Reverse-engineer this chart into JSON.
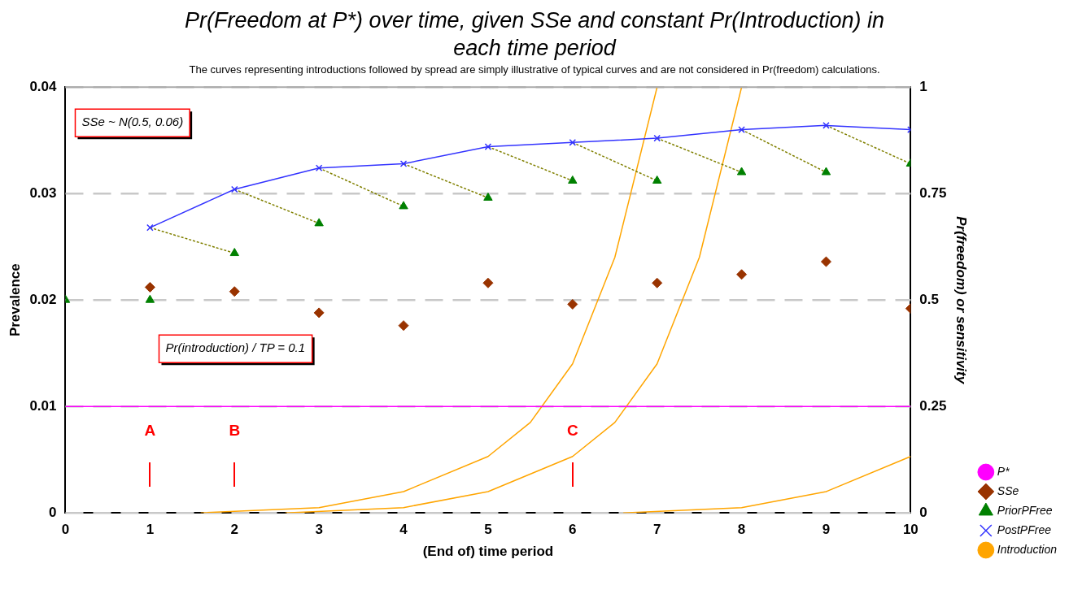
{
  "chart_data": {
    "type": "scatter",
    "title": "Pr(Freedom at P*)  over time, given SSe and constant Pr(Introduction) in each time period",
    "subtitle": "The curves representing introductions followed by spread are simply illustrative of typical curves and are not considered in Pr(freedom) calculations.",
    "xlabel": "(End of) time period",
    "ylabel": "Prevalence",
    "y2label": "Pr(freedom) or sensitivity",
    "xlim": [
      0,
      10
    ],
    "xticks": [
      0,
      1,
      2,
      3,
      4,
      5,
      6,
      7,
      8,
      9,
      10
    ],
    "ylim": [
      0,
      0.04
    ],
    "yticks": [
      0,
      0.01,
      0.02,
      0.03,
      0.04
    ],
    "y2lim": [
      0,
      1
    ],
    "y2ticks": [
      0,
      0.25,
      0.5,
      0.75,
      1
    ],
    "grid": "y",
    "legend": "bottom right",
    "series": [
      {
        "name": "P*",
        "type": "line",
        "color": "#ff00ff",
        "marker": "none",
        "x": [
          0,
          10
        ],
        "values": [
          0.01,
          0.01
        ]
      },
      {
        "name": "SSe",
        "color": "#993300",
        "marker": "diamond",
        "axis": "y2",
        "x": [
          1,
          2,
          3,
          4,
          5,
          6,
          7,
          8,
          9,
          10
        ],
        "values": [
          0.53,
          0.52,
          0.47,
          0.44,
          0.54,
          0.49,
          0.54,
          0.56,
          0.59,
          0.48
        ]
      },
      {
        "name": "PriorPFree",
        "color": "#008000",
        "marker": "triangle",
        "axis": "y2",
        "x": [
          0,
          1,
          2,
          3,
          4,
          5,
          6,
          7,
          8,
          9,
          10
        ],
        "values": [
          0.5,
          0.5,
          0.61,
          0.68,
          0.72,
          0.74,
          0.78,
          0.78,
          0.8,
          0.8,
          0.82
        ]
      },
      {
        "name": "PostPFree",
        "type": "line",
        "color": "#3333ff",
        "marker": "cross",
        "axis": "y2",
        "x": [
          1,
          2,
          3,
          4,
          5,
          6,
          7,
          8,
          9,
          10
        ],
        "values": [
          0.67,
          0.76,
          0.81,
          0.82,
          0.86,
          0.87,
          0.88,
          0.9,
          0.91,
          0.9
        ]
      },
      {
        "type": "line",
        "color": "#808000",
        "marker": "none",
        "line_style": "dotted",
        "axis": "y2",
        "x": [
          1,
          2,
          null,
          2,
          3,
          null,
          3,
          4,
          null,
          4,
          5,
          null,
          5,
          6,
          null,
          6,
          7,
          null,
          7,
          8,
          null,
          8,
          9,
          null,
          9,
          10
        ],
        "values": [
          0.67,
          0.61,
          null,
          0.76,
          0.68,
          null,
          0.81,
          0.72,
          null,
          0.82,
          0.74,
          null,
          0.86,
          0.78,
          null,
          0.87,
          0.78,
          null,
          0.88,
          0.8,
          null,
          0.9,
          0.8,
          null,
          0.91,
          0.82
        ]
      },
      {
        "name": "Introduction",
        "type": "line",
        "color": "#ffa500",
        "marker": "none",
        "x": [
          1.6,
          3,
          4,
          5,
          5.5,
          6,
          6.5,
          7,
          null,
          2.6,
          4,
          5,
          6,
          6.5,
          7,
          7.5,
          8,
          null,
          6.6,
          8,
          9,
          10
        ],
        "values": [
          0,
          0.0005,
          0.002,
          0.0053,
          0.0085,
          0.014,
          0.024,
          0.04,
          null,
          0,
          0.0005,
          0.002,
          0.0053,
          0.0085,
          0.014,
          0.024,
          0.04,
          null,
          0,
          0.0005,
          0.002,
          0.0053
        ]
      }
    ],
    "annotations": [
      "SSe ~ N(0.5, 0.06)",
      "Pr(introduction) / TP = 0.1",
      "A",
      "B",
      "C"
    ]
  }
}
